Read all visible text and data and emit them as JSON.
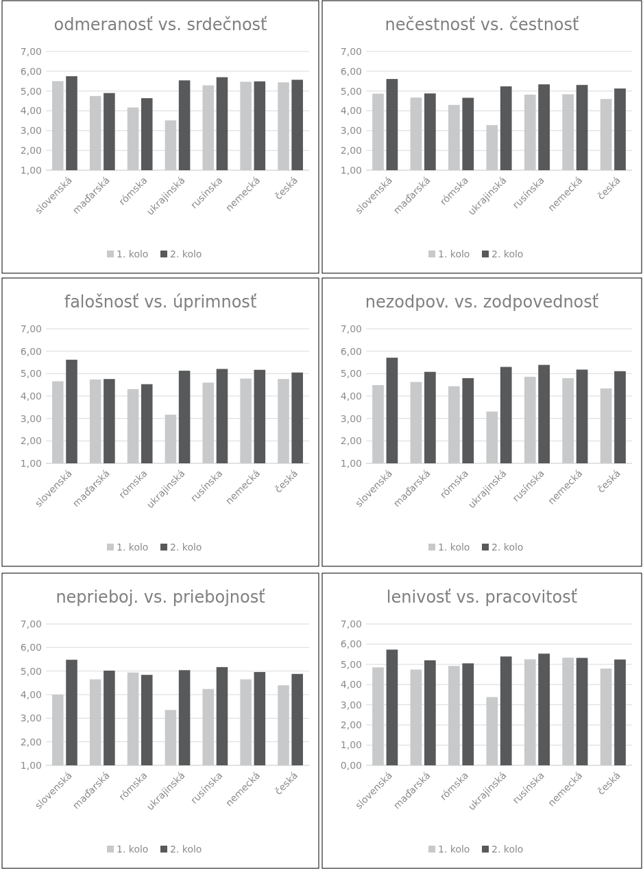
{
  "chart_data": [
    {
      "type": "bar",
      "title": "odmeranosť vs. srdečnosť",
      "categories": [
        "slovenská",
        "maďarská",
        "rómska",
        "ukrajinská",
        "rusínska",
        "nemecká",
        "česká"
      ],
      "series": [
        {
          "name": "1. kolo",
          "color": "#c8c9ca",
          "values": [
            5.5,
            4.75,
            4.17,
            3.52,
            5.29,
            5.47,
            5.44
          ]
        },
        {
          "name": "2. kolo",
          "color": "#58595b",
          "values": [
            5.75,
            4.9,
            4.64,
            5.54,
            5.7,
            5.49,
            5.57
          ]
        }
      ],
      "ylim": [
        1,
        7
      ],
      "yticks": [
        {
          "value": 1,
          "label": "1,00"
        },
        {
          "value": 2,
          "label": "2,00"
        },
        {
          "value": 3,
          "label": "3,00"
        },
        {
          "value": 4,
          "label": "4,00"
        },
        {
          "value": 5,
          "label": "5,00"
        },
        {
          "value": 6,
          "label": "6,00"
        },
        {
          "value": 7,
          "label": "7,00"
        }
      ],
      "grid": "y",
      "legend": "bottom"
    },
    {
      "type": "bar",
      "title": "nečestnosť vs. čestnosť",
      "categories": [
        "slovenská",
        "maďarská",
        "rómska",
        "ukrajinská",
        "rusínska",
        "nemecká",
        "česká"
      ],
      "series": [
        {
          "name": "1. kolo",
          "color": "#c8c9ca",
          "values": [
            4.87,
            4.67,
            4.3,
            3.28,
            4.82,
            4.84,
            4.6
          ]
        },
        {
          "name": "2. kolo",
          "color": "#58595b",
          "values": [
            5.61,
            4.88,
            4.66,
            5.24,
            5.34,
            5.31,
            5.13
          ]
        }
      ],
      "ylim": [
        1,
        7
      ],
      "yticks": [
        {
          "value": 1,
          "label": "1,00"
        },
        {
          "value": 2,
          "label": "2,00"
        },
        {
          "value": 3,
          "label": "3,00"
        },
        {
          "value": 4,
          "label": "4,00"
        },
        {
          "value": 5,
          "label": "5,00"
        },
        {
          "value": 6,
          "label": "6,00"
        },
        {
          "value": 7,
          "label": "7,00"
        }
      ],
      "grid": "y",
      "legend": "bottom"
    },
    {
      "type": "bar",
      "title": "falošnosť vs. úprimnosť",
      "categories": [
        "slovenská",
        "maďarská",
        "rómska",
        "ukrajinská",
        "rusínska",
        "nemecká",
        "česká"
      ],
      "series": [
        {
          "name": "1. kolo",
          "color": "#c8c9ca",
          "values": [
            4.66,
            4.74,
            4.31,
            3.17,
            4.6,
            4.78,
            4.76
          ]
        },
        {
          "name": "2. kolo",
          "color": "#58595b",
          "values": [
            5.62,
            4.76,
            4.53,
            5.13,
            5.21,
            5.17,
            5.05
          ]
        }
      ],
      "ylim": [
        1,
        7
      ],
      "yticks": [
        {
          "value": 1,
          "label": "1,00"
        },
        {
          "value": 2,
          "label": "2,00"
        },
        {
          "value": 3,
          "label": "3,00"
        },
        {
          "value": 4,
          "label": "4,00"
        },
        {
          "value": 5,
          "label": "5,00"
        },
        {
          "value": 6,
          "label": "6,00"
        },
        {
          "value": 7,
          "label": "7,00"
        }
      ],
      "grid": "y",
      "legend": "bottom"
    },
    {
      "type": "bar",
      "title": "nezodpov. vs. zodpovednosť",
      "categories": [
        "slovenská",
        "maďarská",
        "rómska",
        "ukrajinská",
        "rusínska",
        "nemecká",
        "česká"
      ],
      "series": [
        {
          "name": "1. kolo",
          "color": "#c8c9ca",
          "values": [
            4.49,
            4.63,
            4.44,
            3.31,
            4.86,
            4.8,
            4.34
          ]
        },
        {
          "name": "2. kolo",
          "color": "#58595b",
          "values": [
            5.71,
            5.08,
            4.8,
            5.3,
            5.39,
            5.18,
            5.11
          ]
        }
      ],
      "ylim": [
        1,
        7
      ],
      "yticks": [
        {
          "value": 1,
          "label": "1,00"
        },
        {
          "value": 2,
          "label": "2,00"
        },
        {
          "value": 3,
          "label": "3,00"
        },
        {
          "value": 4,
          "label": "4,00"
        },
        {
          "value": 5,
          "label": "5,00"
        },
        {
          "value": 6,
          "label": "6,00"
        },
        {
          "value": 7,
          "label": "7,00"
        }
      ],
      "grid": "y",
      "legend": "bottom"
    },
    {
      "type": "bar",
      "title": "neprieboj. vs. priebojnosť",
      "categories": [
        "slovenská",
        "maďarská",
        "rómska",
        "ukrajinská",
        "rusínska",
        "nemecká",
        "česká"
      ],
      "series": [
        {
          "name": "1. kolo",
          "color": "#c8c9ca",
          "values": [
            4.0,
            4.65,
            4.94,
            3.35,
            4.24,
            4.65,
            4.4
          ]
        },
        {
          "name": "2. kolo",
          "color": "#58595b",
          "values": [
            5.48,
            5.02,
            4.84,
            5.04,
            5.17,
            4.96,
            4.88
          ]
        }
      ],
      "ylim": [
        1,
        7
      ],
      "yticks": [
        {
          "value": 1,
          "label": "1,00"
        },
        {
          "value": 2,
          "label": "2,00"
        },
        {
          "value": 3,
          "label": "3,00"
        },
        {
          "value": 4,
          "label": "4,00"
        },
        {
          "value": 5,
          "label": "5,00"
        },
        {
          "value": 6,
          "label": "6,00"
        },
        {
          "value": 7,
          "label": "7,00"
        }
      ],
      "grid": "y",
      "legend": "bottom"
    },
    {
      "type": "bar",
      "title": "lenivosť vs. pracovitosť",
      "categories": [
        "slovenská",
        "maďarská",
        "rómska",
        "ukrajinská",
        "rusínska",
        "nemecká",
        "česká"
      ],
      "series": [
        {
          "name": "1. kolo",
          "color": "#c8c9ca",
          "values": [
            4.85,
            4.74,
            4.92,
            3.38,
            5.25,
            5.33,
            4.79
          ]
        },
        {
          "name": "2. kolo",
          "color": "#58595b",
          "values": [
            5.73,
            5.2,
            5.05,
            5.39,
            5.53,
            5.32,
            5.24
          ]
        }
      ],
      "ylim": [
        0,
        7
      ],
      "yticks": [
        {
          "value": 0,
          "label": "0,00"
        },
        {
          "value": 1,
          "label": "1,00"
        },
        {
          "value": 2,
          "label": "2,00"
        },
        {
          "value": 3,
          "label": "3,00"
        },
        {
          "value": 4,
          "label": "4,00"
        },
        {
          "value": 5,
          "label": "5,00"
        },
        {
          "value": 6,
          "label": "6,00"
        },
        {
          "value": 7,
          "label": "7,00"
        }
      ],
      "grid": "y",
      "legend": "bottom"
    }
  ]
}
